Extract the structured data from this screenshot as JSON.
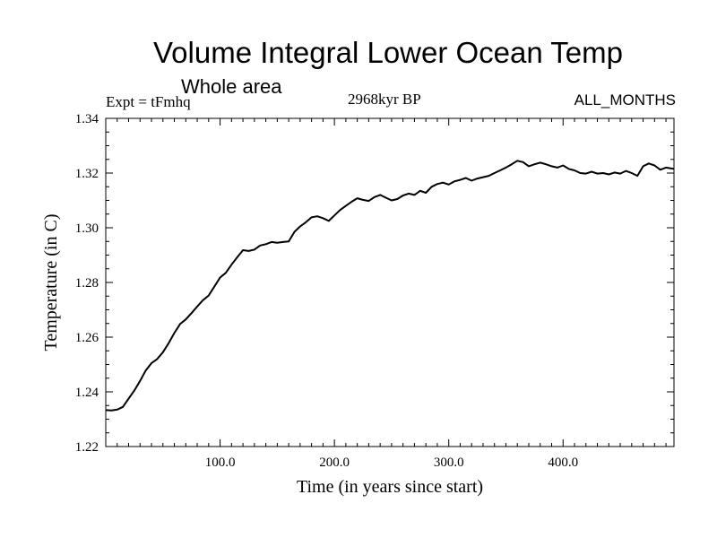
{
  "header": {
    "title": "Volume Integral Lower Ocean Temp",
    "subtitle": "Whole area",
    "expt": "Expt = tFmhq",
    "period": "2968kyr BP",
    "months": "ALL_MONTHS"
  },
  "chart_data": {
    "type": "line",
    "title": "Volume Integral Lower Ocean Temp",
    "xlabel": "Time (in years since start)",
    "ylabel": "Temperature (in C)",
    "xlim": [
      0,
      497
    ],
    "ylim": [
      1.22,
      1.34
    ],
    "x_ticks": [
      100,
      200,
      300,
      400
    ],
    "x_tick_labels": [
      "100.0",
      "200.0",
      "300.0",
      "400.0"
    ],
    "y_ticks": [
      1.22,
      1.24,
      1.26,
      1.28,
      1.3,
      1.32,
      1.34
    ],
    "y_tick_labels": [
      "1.22",
      "1.24",
      "1.26",
      "1.28",
      "1.30",
      "1.32",
      "1.34"
    ],
    "line_color": "#000000",
    "series": [
      {
        "name": "Temperature",
        "x": [
          0,
          5,
          10,
          15,
          20,
          25,
          30,
          35,
          40,
          45,
          50,
          55,
          60,
          65,
          70,
          75,
          80,
          85,
          90,
          95,
          100,
          105,
          110,
          115,
          120,
          125,
          130,
          135,
          140,
          145,
          150,
          155,
          160,
          165,
          170,
          175,
          180,
          185,
          190,
          195,
          200,
          205,
          210,
          215,
          220,
          225,
          230,
          235,
          240,
          245,
          250,
          255,
          260,
          265,
          270,
          275,
          280,
          285,
          290,
          295,
          300,
          305,
          310,
          315,
          320,
          325,
          330,
          335,
          340,
          345,
          350,
          355,
          360,
          365,
          370,
          375,
          380,
          385,
          390,
          395,
          400,
          405,
          410,
          415,
          420,
          425,
          430,
          435,
          440,
          445,
          450,
          455,
          460,
          465,
          470,
          475,
          480,
          485,
          490,
          497
        ],
        "values": [
          1.2333,
          1.2332,
          1.2335,
          1.2345,
          1.2375,
          1.2405,
          1.244,
          1.2478,
          1.2505,
          1.252,
          1.2545,
          1.2578,
          1.2615,
          1.2648,
          1.2665,
          1.2688,
          1.2712,
          1.2735,
          1.2752,
          1.2785,
          1.2818,
          1.2835,
          1.2865,
          1.2892,
          1.2918,
          1.2915,
          1.292,
          1.2935,
          1.294,
          1.2948,
          1.2945,
          1.2948,
          1.295,
          1.2985,
          1.3005,
          1.302,
          1.3038,
          1.3042,
          1.3035,
          1.3025,
          1.3045,
          1.3065,
          1.308,
          1.3095,
          1.3108,
          1.3102,
          1.3098,
          1.3112,
          1.312,
          1.311,
          1.31,
          1.3105,
          1.3118,
          1.3125,
          1.312,
          1.3135,
          1.3128,
          1.315,
          1.316,
          1.3165,
          1.3158,
          1.317,
          1.3175,
          1.3182,
          1.3172,
          1.318,
          1.3185,
          1.319,
          1.32,
          1.321,
          1.322,
          1.3232,
          1.3245,
          1.324,
          1.3225,
          1.3232,
          1.3238,
          1.3232,
          1.3225,
          1.322,
          1.3228,
          1.3215,
          1.321,
          1.32,
          1.3198,
          1.3205,
          1.3198,
          1.32,
          1.3195,
          1.3202,
          1.3198,
          1.3208,
          1.32,
          1.319,
          1.3225,
          1.3235,
          1.3228,
          1.3212,
          1.322,
          1.3215
        ]
      }
    ]
  }
}
